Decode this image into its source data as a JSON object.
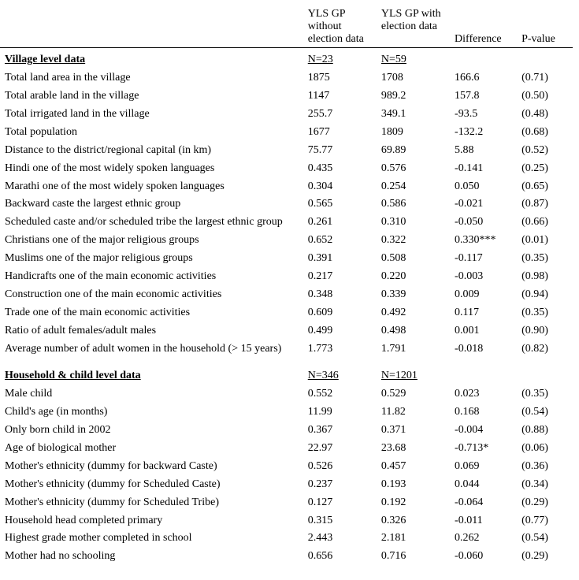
{
  "header": {
    "col1": "YLS GP without election data",
    "col2": "YLS GP with election data",
    "col3": "Difference",
    "col4": "P-value"
  },
  "sections": [
    {
      "title": "Village level data",
      "n1": "N=23",
      "n2": "N=59",
      "rows": [
        {
          "label": "Total land area in the village",
          "c1": "1875",
          "c2": "1708",
          "c3": "166.6",
          "c4": "(0.71)"
        },
        {
          "label": "Total arable land in the village",
          "c1": "1147",
          "c2": "989.2",
          "c3": "157.8",
          "c4": "(0.50)"
        },
        {
          "label": "Total irrigated land in the village",
          "c1": "255.7",
          "c2": "349.1",
          "c3": "-93.5",
          "c4": "(0.48)"
        },
        {
          "label": "Total population",
          "c1": "1677",
          "c2": "1809",
          "c3": "-132.2",
          "c4": "(0.68)"
        },
        {
          "label": "Distance to the district/regional capital (in km)",
          "c1": "75.77",
          "c2": "69.89",
          "c3": "5.88",
          "c4": "(0.52)"
        },
        {
          "label": "Hindi one of the most widely spoken languages",
          "c1": "0.435",
          "c2": "0.576",
          "c3": "-0.141",
          "c4": "(0.25)"
        },
        {
          "label": "Marathi one of the most widely spoken languages",
          "c1": "0.304",
          "c2": "0.254",
          "c3": "0.050",
          "c4": "(0.65)"
        },
        {
          "label": "Backward caste the largest ethnic group",
          "c1": "0.565",
          "c2": "0.586",
          "c3": "-0.021",
          "c4": "(0.87)"
        },
        {
          "label": "Scheduled caste and/or scheduled tribe the largest ethnic group",
          "c1": "0.261",
          "c2": "0.310",
          "c3": "-0.050",
          "c4": "(0.66)"
        },
        {
          "label": "Christians one of the major religious groups",
          "c1": "0.652",
          "c2": "0.322",
          "c3": "0.330***",
          "c4": "(0.01)"
        },
        {
          "label": "Muslims one of the major religious groups",
          "c1": "0.391",
          "c2": "0.508",
          "c3": "-0.117",
          "c4": "(0.35)"
        },
        {
          "label": "Handicrafts one of the main economic activities",
          "c1": "0.217",
          "c2": "0.220",
          "c3": "-0.003",
          "c4": "(0.98)"
        },
        {
          "label": "Construction one of the main economic activities",
          "c1": "0.348",
          "c2": "0.339",
          "c3": "0.009",
          "c4": "(0.94)"
        },
        {
          "label": "Trade one of the main economic activities",
          "c1": "0.609",
          "c2": "0.492",
          "c3": "0.117",
          "c4": "(0.35)"
        },
        {
          "label": "Ratio of adult females/adult males",
          "c1": "0.499",
          "c2": "0.498",
          "c3": "0.001",
          "c4": "(0.90)"
        },
        {
          "label": "Average number of adult women in the household (> 15 years)",
          "c1": "1.773",
          "c2": "1.791",
          "c3": "-0.018",
          "c4": "(0.82)"
        }
      ]
    },
    {
      "title": "Household & child level data",
      "n1": "N=346",
      "n2": "N=1201",
      "rows": [
        {
          "label": "Male child",
          "c1": "0.552",
          "c2": "0.529",
          "c3": "0.023",
          "c4": "(0.35)"
        },
        {
          "label": "Child's age (in months)",
          "c1": "11.99",
          "c2": "11.82",
          "c3": "0.168",
          "c4": "(0.54)"
        },
        {
          "label": "Only born child in 2002",
          "c1": "0.367",
          "c2": "0.371",
          "c3": "-0.004",
          "c4": "(0.88)"
        },
        {
          "label": "Age of biological mother",
          "c1": "22.97",
          "c2": "23.68",
          "c3": "-0.713*",
          "c4": "(0.06)"
        },
        {
          "label": "Mother's ethnicity (dummy for backward Caste)",
          "c1": "0.526",
          "c2": "0.457",
          "c3": "0.069",
          "c4": "(0.36)"
        },
        {
          "label": "Mother's ethnicity (dummy for Scheduled Caste)",
          "c1": "0.237",
          "c2": "0.193",
          "c3": "0.044",
          "c4": "(0.34)"
        },
        {
          "label": "Mother's ethnicity (dummy for Scheduled Tribe)",
          "c1": "0.127",
          "c2": "0.192",
          "c3": "-0.064",
          "c4": "(0.29)"
        },
        {
          "label": "Household head completed primary",
          "c1": "0.315",
          "c2": "0.326",
          "c3": "-0.011",
          "c4": "(0.77)"
        },
        {
          "label": "Highest grade mother completed in school",
          "c1": "2.443",
          "c2": "2.181",
          "c3": "0.262",
          "c4": "(0.54)"
        },
        {
          "label": "Mother had no schooling",
          "c1": "0.656",
          "c2": "0.716",
          "c3": "-0.060",
          "c4": "(0.29)"
        }
      ]
    }
  ]
}
